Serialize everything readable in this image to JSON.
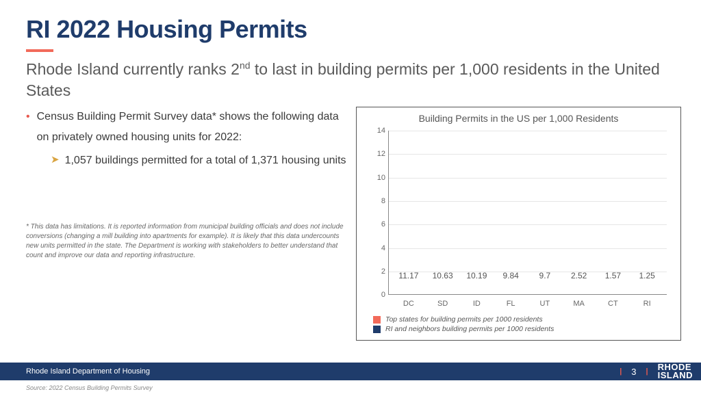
{
  "colors": {
    "navy": "#1f3c6b",
    "coral": "#f26a5a",
    "barNavy": "#1f3c6b",
    "footerBg": "#1f3c6b",
    "grid": "#e6e6e6"
  },
  "title": "RI 2022 Housing Permits",
  "subtitle_pre": "Rhode Island currently ranks 2",
  "subtitle_sup": "nd",
  "subtitle_post": " to last in building permits per 1,000 residents in the United States",
  "bullet1": "Census Building Permit Survey data* shows the following data on privately owned housing units for 2022:",
  "bullet2": "1,057 buildings permitted for a total of 1,371 housing units",
  "footnote": "* This data has limitations. It is reported information from municipal building officials and does not include conversions (changing a mill building into apartments for example). It is likely that this data undercounts new units permitted in the state. The Department is working with stakeholders to better understand that count and improve our data and reporting infrastructure.",
  "chart": {
    "title": "Building Permits in the US per 1,000 Residents",
    "ylim": [
      0,
      14
    ],
    "ytick_step": 2,
    "categories": [
      "DC",
      "SD",
      "ID",
      "FL",
      "UT",
      "MA",
      "CT",
      "RI"
    ],
    "values": [
      11.17,
      10.63,
      10.19,
      9.84,
      9.7,
      2.52,
      1.57,
      1.25
    ],
    "series": [
      "top",
      "top",
      "top",
      "top",
      "top",
      "ne",
      "ne",
      "ne"
    ],
    "series_colors": {
      "top": "#f26a5a",
      "ne": "#1f3c6b"
    },
    "legend": [
      {
        "key": "top",
        "label": "Top states for building permits per 1000 residents"
      },
      {
        "key": "ne",
        "label": "RI and neighbors building permits per 1000 residents"
      }
    ]
  },
  "footer": {
    "dept": "Rhode Island Department of Housing",
    "page": "3",
    "logo_l1": "RHODE",
    "logo_l2": "ISLAND"
  },
  "source": "Source: 2022 Census Building Permits Survey"
}
